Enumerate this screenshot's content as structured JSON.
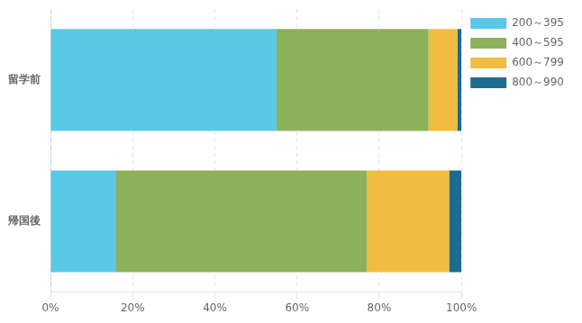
{
  "chart_data": {
    "type": "bar",
    "orientation": "horizontal",
    "stacked": true,
    "categories": [
      "留学前",
      "帰国後"
    ],
    "series": [
      {
        "name": "200～395",
        "color": "#5bc8e8",
        "values": [
          55.0,
          16.0
        ]
      },
      {
        "name": "400～595",
        "color": "#8db05a",
        "values": [
          37.0,
          61.0
        ]
      },
      {
        "name": "600～799",
        "color": "#f0bc42",
        "values": [
          7.0,
          20.0
        ]
      },
      {
        "name": "800～990",
        "color": "#1e6b8c",
        "values": [
          1.0,
          3.0
        ]
      }
    ],
    "xlim": [
      0,
      100
    ],
    "xticks": [
      {
        "value": 0,
        "label": "0%"
      },
      {
        "value": 20,
        "label": "20%"
      },
      {
        "value": 40,
        "label": "40%"
      },
      {
        "value": 60,
        "label": "60%"
      },
      {
        "value": 80,
        "label": "80%"
      },
      {
        "value": 100,
        "label": "100%"
      }
    ],
    "grid": true,
    "legend": "right"
  }
}
